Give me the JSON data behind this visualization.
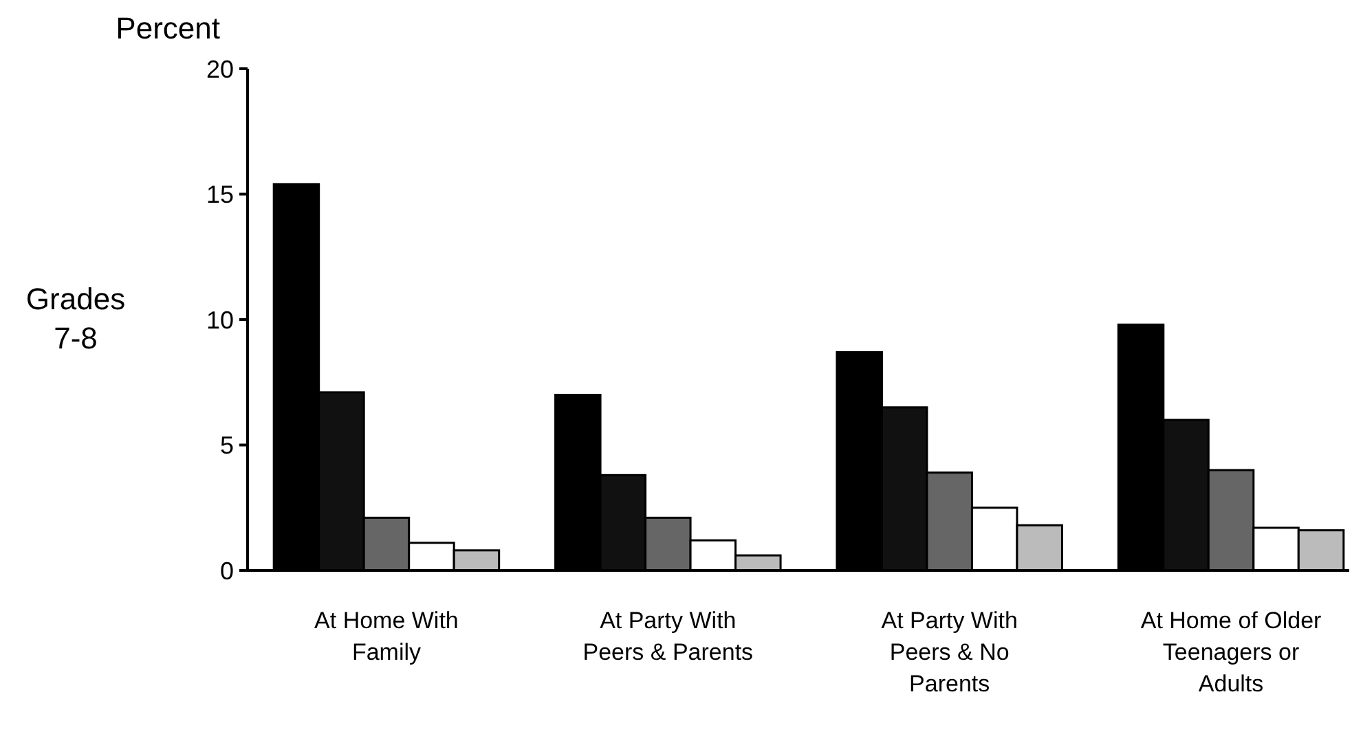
{
  "chart_data": {
    "type": "bar",
    "ylabel": "Percent",
    "annotations": [
      "Grades 7-8"
    ],
    "categories": [
      "At Home With Family",
      "At Party With Peers & Parents",
      "At Party With Peers & No Parents",
      "At Home of Older Teenagers or Adults"
    ],
    "series": [
      {
        "color": "#000000",
        "values": [
          15.4,
          7.0,
          8.7,
          9.8
        ]
      },
      {
        "color": "#111111",
        "values": [
          7.1,
          3.8,
          6.5,
          6.0
        ]
      },
      {
        "color": "#666666",
        "values": [
          2.1,
          2.1,
          3.9,
          4.0
        ]
      },
      {
        "color": "#ffffff",
        "values": [
          1.1,
          1.2,
          2.5,
          1.7
        ]
      },
      {
        "color": "#bbbbbb",
        "values": [
          0.8,
          0.6,
          1.8,
          1.6
        ]
      }
    ],
    "ylim": [
      0,
      20
    ],
    "yticks": [
      0,
      5,
      10,
      15,
      20
    ],
    "grid": false
  }
}
